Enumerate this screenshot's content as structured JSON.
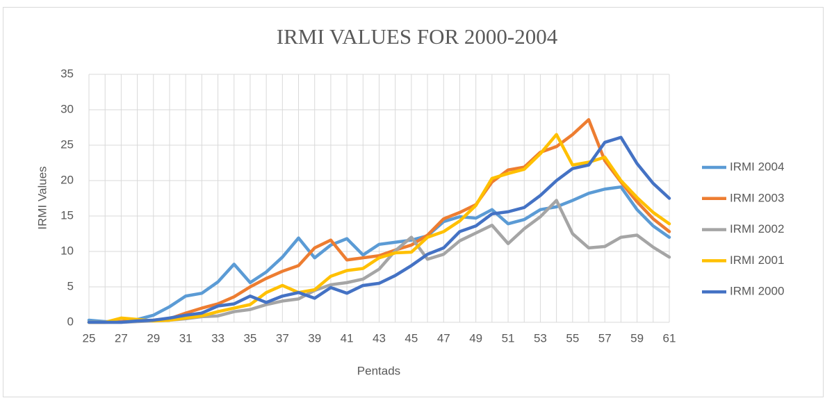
{
  "chart_data": {
    "type": "line",
    "title": "IRMI VALUES FOR 2000-2004",
    "x_label": "Pentads",
    "y_label": "IRMI Values",
    "categories": [
      "25",
      null,
      "27",
      null,
      "29",
      null,
      "31",
      null,
      "33",
      null,
      "35",
      null,
      "37",
      null,
      "39",
      null,
      "41",
      null,
      "43",
      null,
      "45",
      null,
      "47",
      null,
      "49",
      null,
      "51",
      null,
      "53",
      null,
      "55",
      null,
      "57",
      null,
      "59",
      null,
      "61"
    ],
    "series": [
      {
        "name": "IRMI 2004",
        "color": "#5b9bd5",
        "values": [
          0.3,
          0.1,
          0.1,
          0.4,
          1.0,
          2.2,
          3.7,
          4.1,
          5.7,
          8.2,
          5.6,
          7.1,
          9.2,
          11.9,
          9.1,
          10.9,
          11.8,
          9.5,
          11.0,
          11.3,
          11.6,
          12.2,
          14.2,
          14.9,
          14.7,
          15.9,
          13.9,
          14.5,
          15.9,
          16.3,
          17.2,
          18.2,
          18.8,
          19.1,
          15.9,
          13.6,
          12.0
        ]
      },
      {
        "name": "IRMI 2003",
        "color": "#ed7d31",
        "values": [
          0,
          0,
          0.1,
          0.2,
          0.3,
          0.5,
          1.3,
          2.0,
          2.6,
          3.6,
          5.0,
          6.2,
          7.2,
          8.0,
          10.5,
          11.6,
          8.8,
          9.1,
          9.4,
          10.2,
          10.9,
          12.3,
          14.6,
          15.5,
          16.6,
          19.8,
          21.5,
          21.9,
          24.0,
          24.8,
          26.5,
          28.6,
          22.8,
          19.8,
          17.0,
          14.6,
          12.8
        ]
      },
      {
        "name": "IRMI 2002",
        "color": "#a5a5a5",
        "values": [
          0,
          0,
          0,
          0.1,
          0.2,
          0.3,
          0.5,
          0.8,
          0.9,
          1.5,
          1.8,
          2.5,
          3.0,
          3.3,
          4.5,
          5.3,
          5.6,
          6.1,
          7.5,
          10.1,
          12.0,
          8.9,
          9.6,
          11.5,
          12.6,
          13.7,
          11.1,
          13.2,
          14.9,
          17.2,
          12.5,
          10.5,
          10.7,
          12.0,
          12.3,
          10.6,
          9.2
        ]
      },
      {
        "name": "IRMI 2001",
        "color": "#ffc000",
        "values": [
          0,
          0,
          0.6,
          0.4,
          0.2,
          0.3,
          0.6,
          0.9,
          1.5,
          2.0,
          2.5,
          4.2,
          5.2,
          4.2,
          4.6,
          6.5,
          7.3,
          7.6,
          9.1,
          9.8,
          9.9,
          12.0,
          12.8,
          14.3,
          16.5,
          20.3,
          21.0,
          21.6,
          23.8,
          26.5,
          22.2,
          22.6,
          23.3,
          20.0,
          17.6,
          15.5,
          13.9
        ]
      },
      {
        "name": "IRMI 2000",
        "color": "#4472c4",
        "values": [
          0,
          0,
          0,
          0.2,
          0.3,
          0.6,
          1.0,
          1.3,
          2.3,
          2.6,
          3.7,
          2.8,
          3.7,
          4.2,
          3.4,
          4.9,
          4.1,
          5.2,
          5.5,
          6.6,
          8.0,
          9.6,
          10.5,
          12.8,
          13.6,
          15.3,
          15.6,
          16.2,
          17.9,
          20.0,
          21.7,
          22.2,
          25.4,
          26.1,
          22.4,
          19.6,
          17.5
        ]
      }
    ],
    "ylim": [
      0,
      35
    ],
    "yticks": [
      0,
      5,
      10,
      15,
      20,
      25,
      30,
      35
    ],
    "grid": true,
    "legend": "right"
  }
}
